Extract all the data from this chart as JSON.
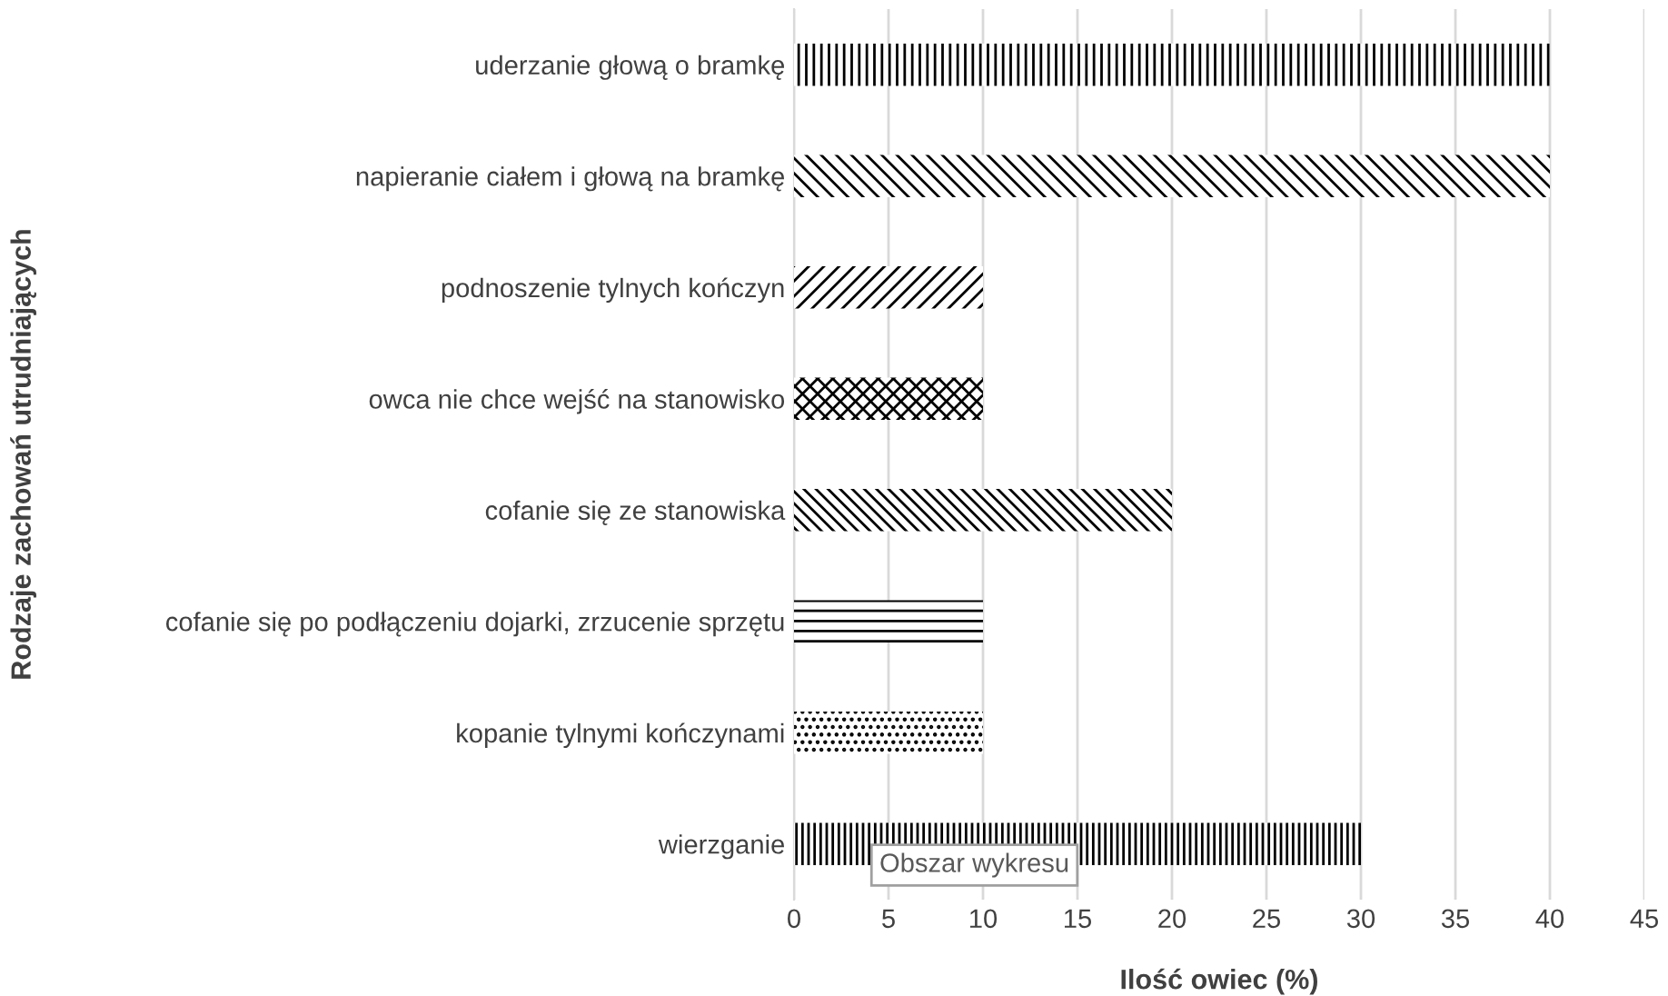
{
  "chart_data": {
    "type": "bar",
    "orientation": "horizontal",
    "ylabel": "Rodzaje zachowań utrudniających",
    "xlabel": "Ilość owiec (%)",
    "categories": [
      "uderzanie głową o bramkę",
      "napieranie ciałem i głową na bramkę",
      "podnoszenie tylnych kończyn",
      "owca nie chce wejść na stanowisko",
      "cofanie się ze stanowiska",
      "cofanie się po podłączeniu dojarki, zrzucenie sprzętu",
      "kopanie tylnymi kończynami",
      "wierzganie"
    ],
    "values": [
      40,
      40,
      10,
      10,
      20,
      10,
      10,
      30
    ],
    "color": "#000000",
    "xlim": [
      0,
      45
    ],
    "xticks": [
      0,
      5,
      10,
      15,
      20,
      25,
      30,
      35,
      40,
      45
    ],
    "grid": "x",
    "legend": false,
    "annotations": [
      "Obszar wykresu"
    ]
  }
}
